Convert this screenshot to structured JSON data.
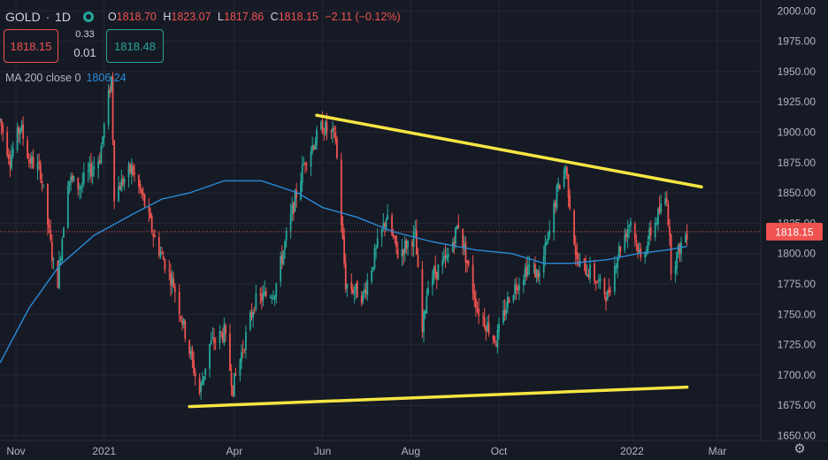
{
  "header": {
    "symbol": "GOLD",
    "interval": "1D",
    "open_label": "O",
    "open": "1818.70",
    "high_label": "H",
    "high": "1823.07",
    "low_label": "L",
    "low": "1817.86",
    "close_label": "C",
    "close": "1818.15",
    "change": "−2.11 (−0.12%)"
  },
  "trade": {
    "sell_price": "1818.15",
    "buy_price": "1818.48",
    "spread_top": "0.33",
    "spread_bottom": "0.01"
  },
  "indicator": {
    "label": "MA 200 close 0",
    "value": "1806.24"
  },
  "colors": {
    "background": "#161a25",
    "up": "#26a69a",
    "down": "#ef5350",
    "ma": "#2a8bd9",
    "trendline": "#f5e642",
    "grid": "#222733",
    "axis_text": "#b2b5be"
  },
  "chart_data": {
    "type": "candlestick",
    "y_axis_ticks": [
      "2000.00",
      "1975.00",
      "1950.00",
      "1925.00",
      "1900.00",
      "1875.00",
      "1850.00",
      "1825.00",
      "1800.00",
      "1775.00",
      "1750.00",
      "1725.00",
      "1700.00",
      "1675.00",
      "1650.00"
    ],
    "ylim": [
      1646,
      2009
    ],
    "x_axis_ticks": [
      "Nov",
      "2021",
      "Apr",
      "Jun",
      "Aug",
      "Oct",
      "2022",
      "Mar"
    ],
    "xlim": [
      "2020-10-21",
      "2022-03-31"
    ],
    "current_price": 1818.15,
    "current_price_label": "1818.15",
    "grid": true,
    "close_path": [
      [
        "2020-10-21",
        1910
      ],
      [
        "2020-10-28",
        1878
      ],
      [
        "2020-11-04",
        1905
      ],
      [
        "2020-11-10",
        1878
      ],
      [
        "2020-11-18",
        1868
      ],
      [
        "2020-11-27",
        1790
      ],
      [
        "2020-11-30",
        1778
      ],
      [
        "2020-12-07",
        1862
      ],
      [
        "2020-12-15",
        1855
      ],
      [
        "2020-12-29",
        1880
      ],
      [
        "2021-01-06",
        1945
      ],
      [
        "2021-01-08",
        1850
      ],
      [
        "2021-01-20",
        1870
      ],
      [
        "2021-01-28",
        1845
      ],
      [
        "2021-02-05",
        1812
      ],
      [
        "2021-02-18",
        1775
      ],
      [
        "2021-02-26",
        1735
      ],
      [
        "2021-03-08",
        1685
      ],
      [
        "2021-03-15",
        1725
      ],
      [
        "2021-03-25",
        1735
      ],
      [
        "2021-03-31",
        1690
      ],
      [
        "2021-04-15",
        1760
      ],
      [
        "2021-04-29",
        1770
      ],
      [
        "2021-05-11",
        1835
      ],
      [
        "2021-05-20",
        1878
      ],
      [
        "2021-06-01",
        1905
      ],
      [
        "2021-06-10",
        1895
      ],
      [
        "2021-06-17",
        1775
      ],
      [
        "2021-06-29",
        1765
      ],
      [
        "2021-07-08",
        1802
      ],
      [
        "2021-07-15",
        1830
      ],
      [
        "2021-07-23",
        1800
      ],
      [
        "2021-08-04",
        1815
      ],
      [
        "2021-08-09",
        1735
      ],
      [
        "2021-08-13",
        1778
      ],
      [
        "2021-08-26",
        1795
      ],
      [
        "2021-09-03",
        1825
      ],
      [
        "2021-09-16",
        1755
      ],
      [
        "2021-09-29",
        1728
      ],
      [
        "2021-10-08",
        1765
      ],
      [
        "2021-10-21",
        1790
      ],
      [
        "2021-10-29",
        1782
      ],
      [
        "2021-11-05",
        1818
      ],
      [
        "2021-11-10",
        1850
      ],
      [
        "2021-11-16",
        1872
      ],
      [
        "2021-11-24",
        1792
      ],
      [
        "2021-12-03",
        1785
      ],
      [
        "2021-12-15",
        1765
      ],
      [
        "2021-12-22",
        1800
      ],
      [
        "2021-12-31",
        1828
      ],
      [
        "2022-01-07",
        1795
      ],
      [
        "2022-01-14",
        1818
      ],
      [
        "2022-01-25",
        1848
      ],
      [
        "2022-01-28",
        1790
      ],
      [
        "2022-02-01",
        1798
      ],
      [
        "2022-02-04",
        1808
      ],
      [
        "2022-02-08",
        1818
      ]
    ],
    "series": [
      {
        "name": "MA 200 close 0",
        "type": "line",
        "points": [
          [
            "2020-10-21",
            1710
          ],
          [
            "2020-11-10",
            1755
          ],
          [
            "2020-12-01",
            1790
          ],
          [
            "2020-12-25",
            1815
          ],
          [
            "2021-01-20",
            1832
          ],
          [
            "2021-02-10",
            1845
          ],
          [
            "2021-03-01",
            1850
          ],
          [
            "2021-03-25",
            1860
          ],
          [
            "2021-04-20",
            1860
          ],
          [
            "2021-05-15",
            1850
          ],
          [
            "2021-06-01",
            1838
          ],
          [
            "2021-06-25",
            1830
          ],
          [
            "2021-07-20",
            1818
          ],
          [
            "2021-08-15",
            1810
          ],
          [
            "2021-09-15",
            1803
          ],
          [
            "2021-10-10",
            1800
          ],
          [
            "2021-11-01",
            1792
          ],
          [
            "2021-11-20",
            1792
          ],
          [
            "2021-12-15",
            1795
          ],
          [
            "2022-01-05",
            1800
          ],
          [
            "2022-01-25",
            1803
          ],
          [
            "2022-02-08",
            1806
          ]
        ]
      }
    ],
    "trendlines": [
      {
        "from": [
          "2021-05-28",
          1914
        ],
        "to": [
          "2022-02-18",
          1855
        ]
      },
      {
        "from": [
          "2021-03-01",
          1674
        ],
        "to": [
          "2022-02-08",
          1690
        ]
      }
    ]
  }
}
